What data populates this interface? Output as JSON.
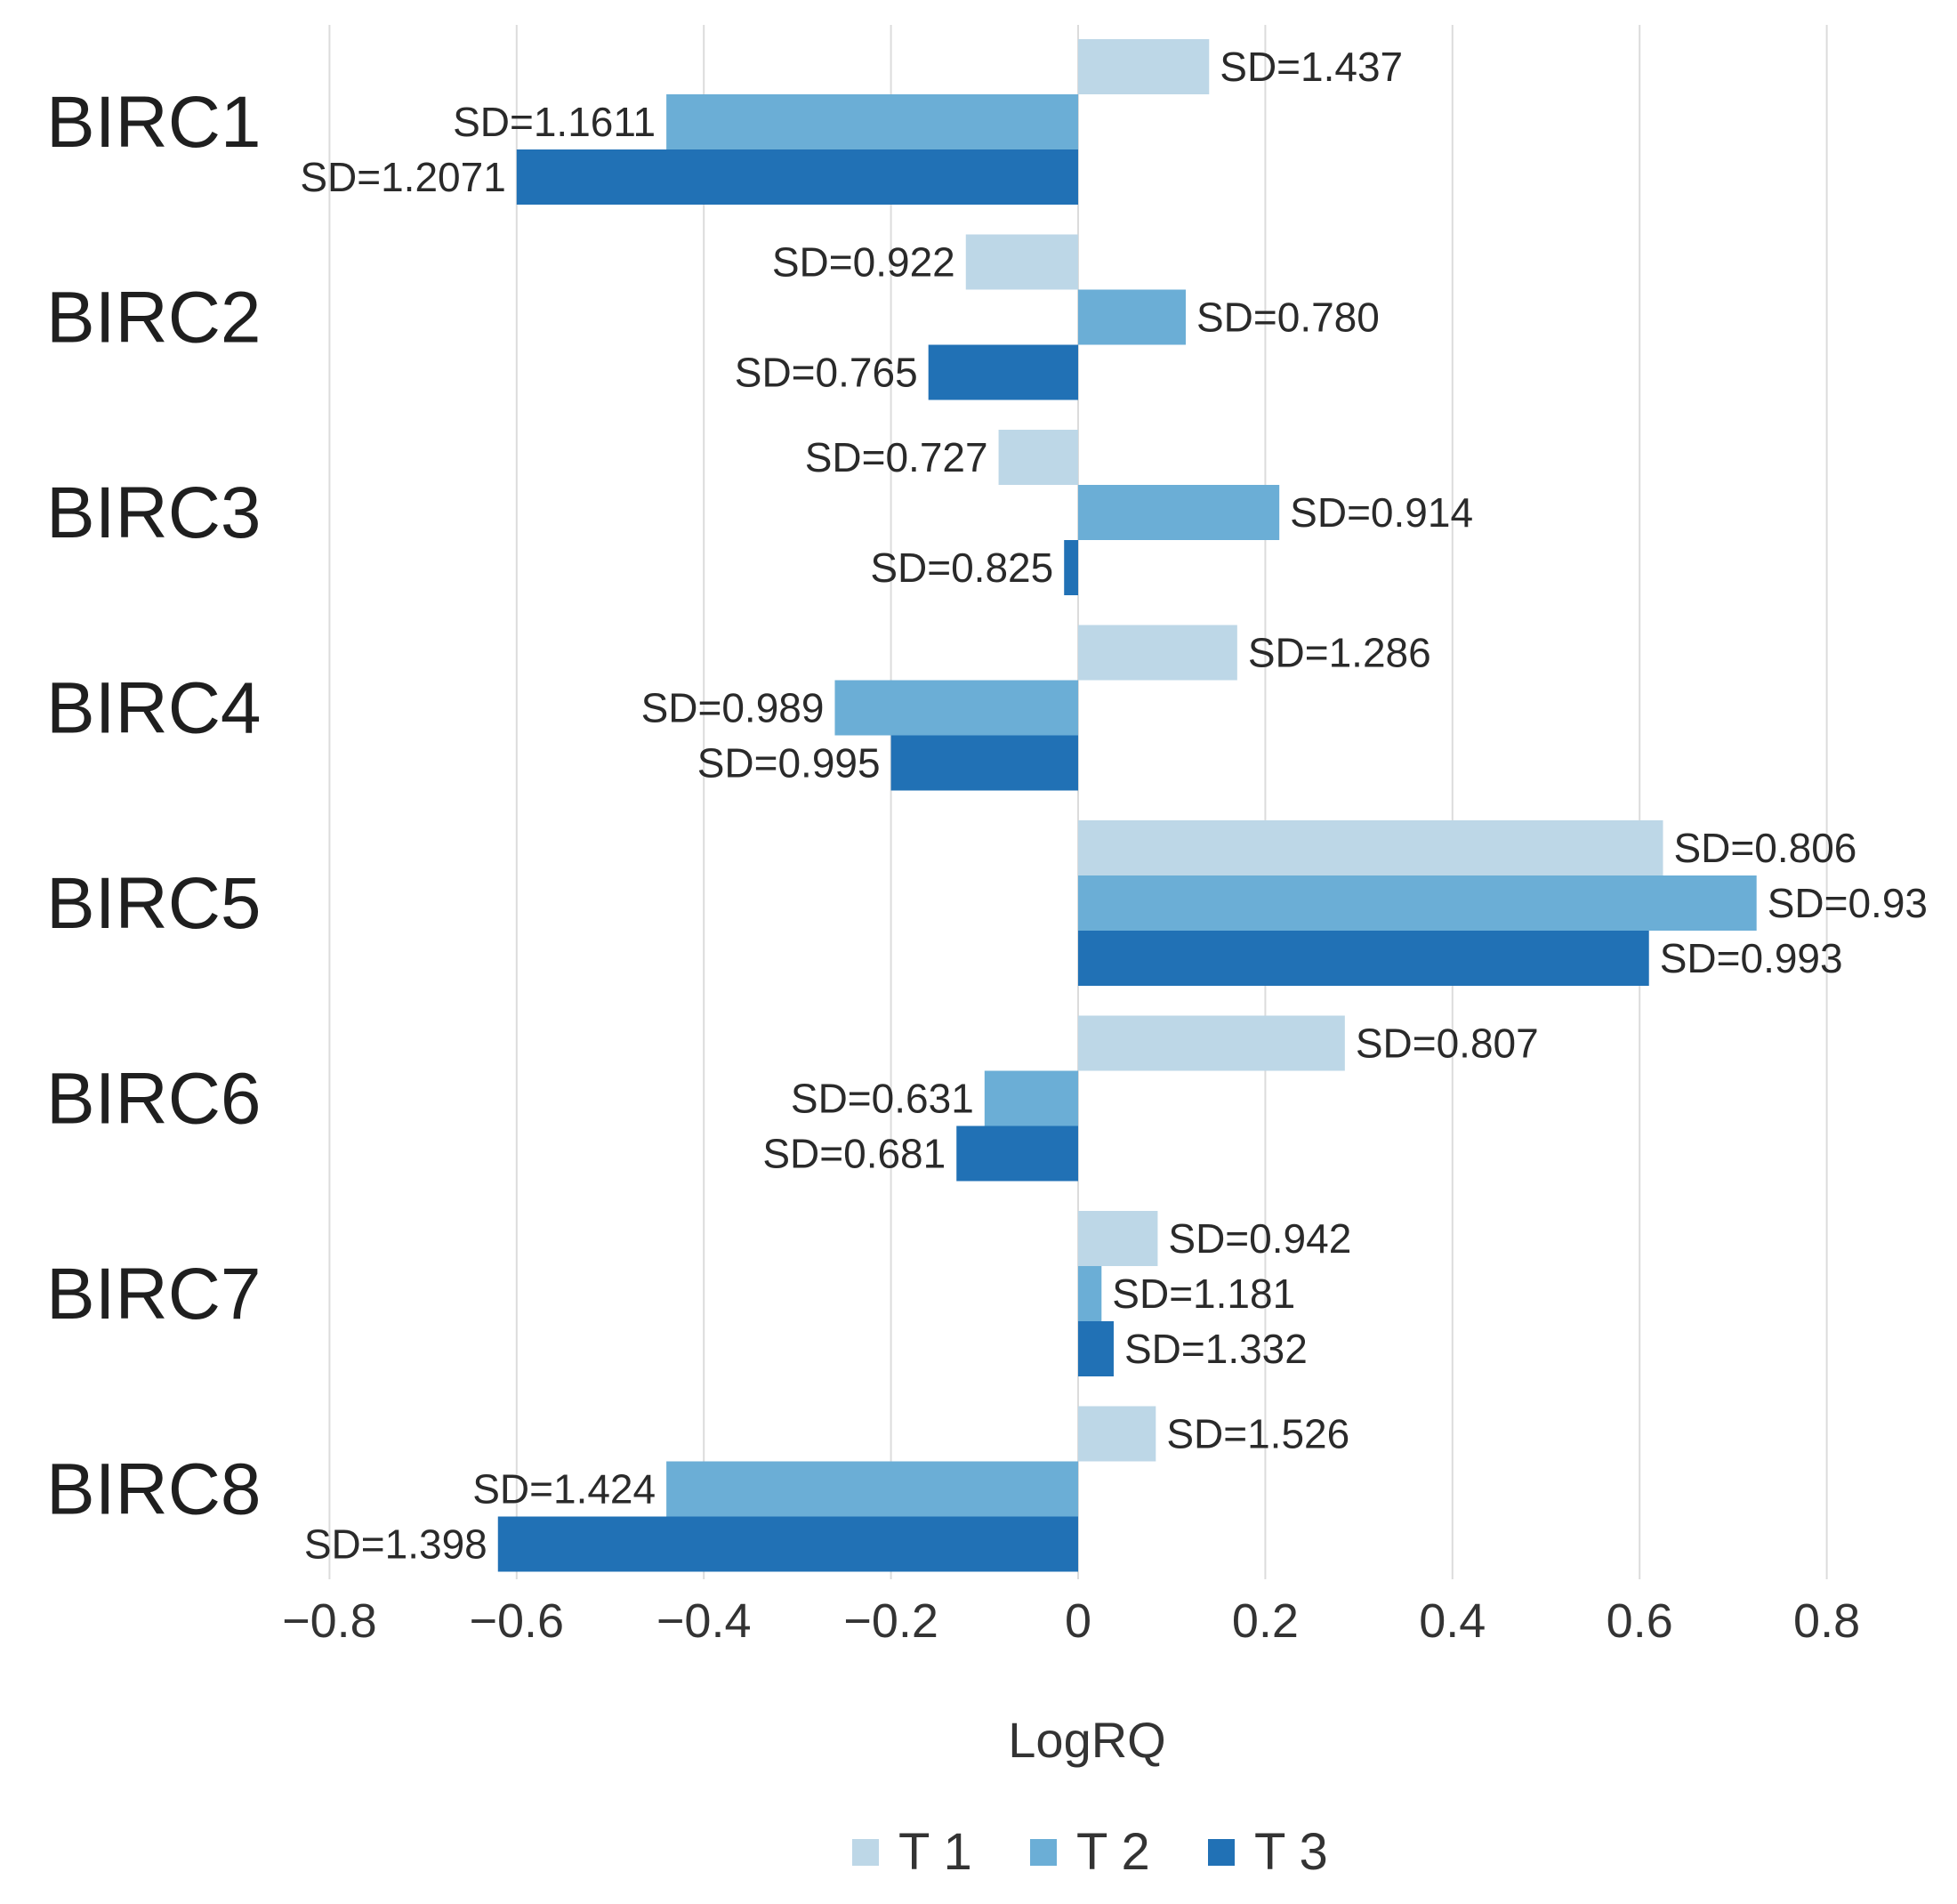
{
  "chart_data": {
    "type": "bar",
    "orientation": "horizontal",
    "title": "",
    "xlabel": "LogRQ",
    "ylabel": "",
    "xlim": [
      -0.8,
      0.8
    ],
    "xticks": [
      -0.8,
      -0.6,
      -0.4,
      -0.2,
      0,
      0.2,
      0.4,
      0.6,
      0.8
    ],
    "xtick_labels": [
      "−0.8",
      "−0.6",
      "−0.4",
      "−0.2",
      "0",
      "0.2",
      "0.4",
      "0.6",
      "0.8"
    ],
    "grid": true,
    "legend_position": "bottom",
    "categories": [
      "BIRC1",
      "BIRC2",
      "BIRC3",
      "BIRC4",
      "BIRC5",
      "BIRC6",
      "BIRC7",
      "BIRC8"
    ],
    "series": [
      {
        "name": "T 1",
        "color": "#bdd7e7",
        "values": [
          0.14,
          -0.12,
          -0.085,
          0.17,
          0.625,
          0.285,
          0.085,
          0.083
        ],
        "labels": [
          "SD=1.437",
          "SD=0.922",
          "SD=0.727",
          "SD=1.286",
          "SD=0.806",
          "SD=0.807",
          "SD=0.942",
          "SD=1.526"
        ]
      },
      {
        "name": "T 2",
        "color": "#6baed6",
        "values": [
          -0.44,
          0.115,
          0.215,
          -0.26,
          0.725,
          -0.1,
          0.025,
          -0.44
        ],
        "labels": [
          "SD=1.1611",
          "SD=0.780",
          "SD=0.914",
          "SD=0.989",
          "SD=0.93",
          "SD=0.631",
          "SD=1.181",
          "SD=1.424"
        ]
      },
      {
        "name": "T 3",
        "color": "#2171b5",
        "values": [
          -0.6,
          -0.16,
          -0.015,
          -0.2,
          0.61,
          -0.13,
          0.038,
          -0.62
        ],
        "labels": [
          "SD=1.2071",
          "SD=0.765",
          "SD=0.825",
          "SD=0.995",
          "SD=0.993",
          "SD=0.681",
          "SD=1.332",
          "SD=1.398"
        ]
      }
    ]
  }
}
